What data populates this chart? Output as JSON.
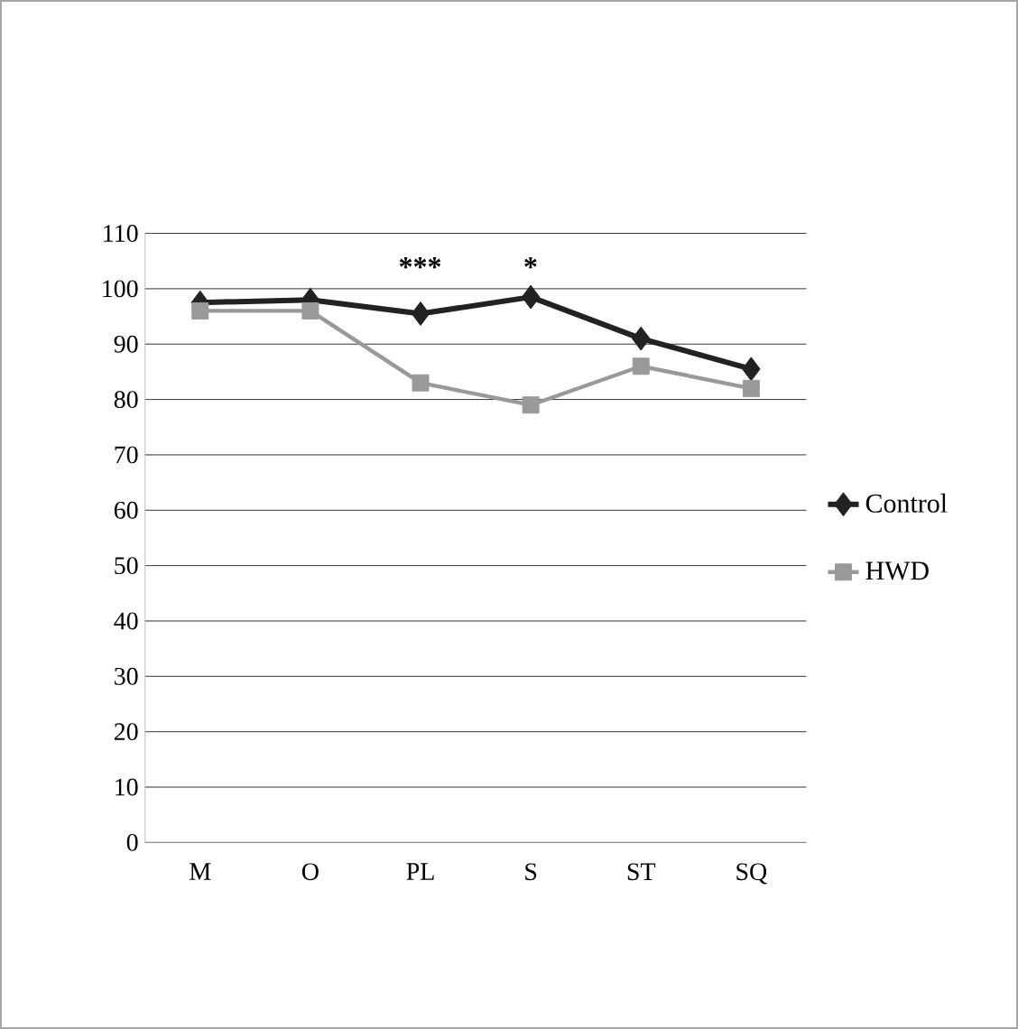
{
  "chart_data": {
    "type": "line",
    "categories": [
      "M",
      "O",
      "PL",
      "S",
      "ST",
      "SQ"
    ],
    "series": [
      {
        "name": "Control",
        "color": "#222222",
        "marker": "diamond",
        "values": [
          97.5,
          98,
          95.5,
          98.5,
          91,
          85.5
        ]
      },
      {
        "name": "HWD",
        "color": "#999999",
        "marker": "square",
        "values": [
          96,
          96,
          83,
          79,
          86,
          82
        ]
      }
    ],
    "ylim": [
      0,
      110
    ],
    "yticks": [
      0,
      10,
      20,
      30,
      40,
      50,
      60,
      70,
      80,
      90,
      100,
      110
    ],
    "grid": "y",
    "legend": "right",
    "annotations": [
      "***",
      "*"
    ]
  }
}
